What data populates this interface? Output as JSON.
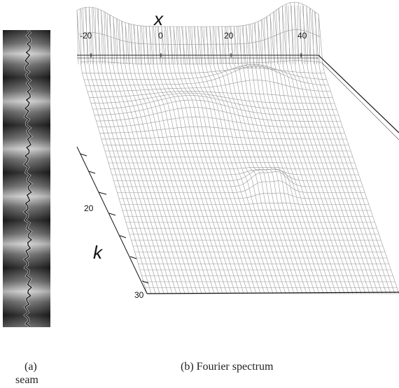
{
  "panel_a": {
    "caption_label": "(a)",
    "caption_text": "seam"
  },
  "panel_b": {
    "caption": "(b) Fourier spectrum",
    "x_axis_name": "x",
    "x_ticks": [
      "-20",
      "0",
      "20",
      "40"
    ],
    "k_axis_name": "k",
    "k_ticks": [
      "20",
      "30"
    ]
  },
  "colors": {
    "mesh": "#9a9a9a",
    "seam_dark": "#1a1a1a",
    "seam_light": "#d8d8d8"
  }
}
